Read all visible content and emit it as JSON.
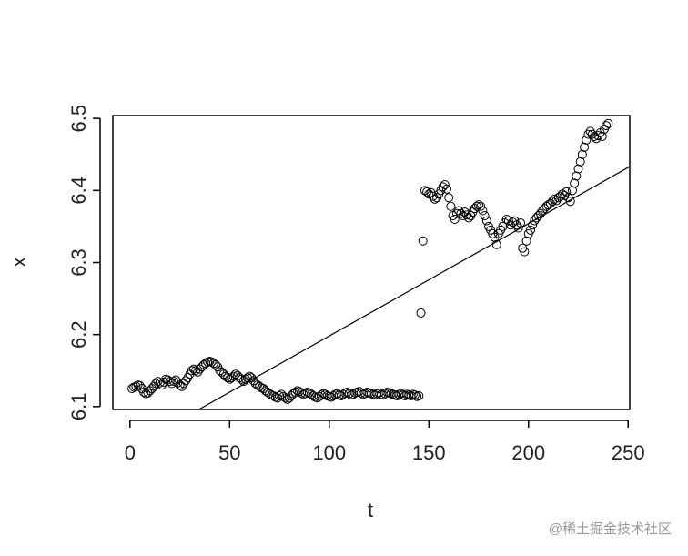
{
  "chart_data": {
    "type": "scatter",
    "xlabel": "t",
    "ylabel": "x",
    "watermark": "@稀土掘金技术社区",
    "xlim": [
      -8.6,
      250.8
    ],
    "ylim": [
      6.096,
      6.504
    ],
    "xticks": [
      0,
      50,
      100,
      150,
      200,
      250
    ],
    "yticks": [
      6.1,
      6.2,
      6.3,
      6.4,
      6.5
    ],
    "color": "#000000",
    "abline": {
      "intercept": 6.042,
      "slope": 0.00156
    },
    "x": [
      1,
      2,
      3,
      4,
      5,
      6,
      7,
      8,
      9,
      10,
      11,
      12,
      13,
      14,
      15,
      16,
      17,
      18,
      19,
      20,
      21,
      22,
      23,
      24,
      25,
      26,
      27,
      28,
      29,
      30,
      31,
      32,
      33,
      34,
      35,
      36,
      37,
      38,
      39,
      40,
      41,
      42,
      43,
      44,
      45,
      46,
      47,
      48,
      49,
      50,
      51,
      52,
      53,
      54,
      55,
      56,
      57,
      58,
      59,
      60,
      61,
      62,
      63,
      64,
      65,
      66,
      67,
      68,
      69,
      70,
      71,
      72,
      73,
      74,
      75,
      76,
      77,
      78,
      79,
      80,
      81,
      82,
      83,
      84,
      85,
      86,
      87,
      88,
      89,
      90,
      91,
      92,
      93,
      94,
      95,
      96,
      97,
      98,
      99,
      100,
      101,
      102,
      103,
      104,
      105,
      106,
      107,
      108,
      109,
      110,
      111,
      112,
      113,
      114,
      115,
      116,
      117,
      118,
      119,
      120,
      121,
      122,
      123,
      124,
      125,
      126,
      127,
      128,
      129,
      130,
      131,
      132,
      133,
      134,
      135,
      136,
      137,
      138,
      139,
      140,
      141,
      142,
      143,
      144,
      145,
      146,
      147,
      148,
      149,
      150,
      151,
      152,
      153,
      154,
      155,
      156,
      157,
      158,
      159,
      160,
      161,
      162,
      163,
      164,
      165,
      166,
      167,
      168,
      169,
      170,
      171,
      172,
      173,
      174,
      175,
      176,
      177,
      178,
      179,
      180,
      181,
      182,
      183,
      184,
      185,
      186,
      187,
      188,
      189,
      190,
      191,
      192,
      193,
      194,
      195,
      196,
      197,
      198,
      199,
      200,
      201,
      202,
      203,
      204,
      205,
      206,
      207,
      208,
      209,
      210,
      211,
      212,
      213,
      214,
      215,
      216,
      217,
      218,
      219,
      220,
      221,
      222,
      223,
      224,
      225,
      226,
      227,
      228,
      229,
      230,
      231,
      232,
      233,
      234,
      235,
      236,
      237,
      238,
      239,
      240
    ],
    "values": [
      6.125,
      6.127,
      6.128,
      6.13,
      6.129,
      6.125,
      6.12,
      6.118,
      6.119,
      6.122,
      6.125,
      6.128,
      6.132,
      6.135,
      6.133,
      6.13,
      6.134,
      6.138,
      6.137,
      6.135,
      6.132,
      6.135,
      6.137,
      6.133,
      6.13,
      6.128,
      6.132,
      6.136,
      6.14,
      6.145,
      6.15,
      6.152,
      6.15,
      6.148,
      6.152,
      6.155,
      6.158,
      6.16,
      6.162,
      6.163,
      6.162,
      6.16,
      6.158,
      6.155,
      6.15,
      6.148,
      6.145,
      6.142,
      6.14,
      6.138,
      6.14,
      6.142,
      6.145,
      6.143,
      6.14,
      6.138,
      6.135,
      6.138,
      6.14,
      6.142,
      6.14,
      6.136,
      6.132,
      6.13,
      6.128,
      6.126,
      6.125,
      6.122,
      6.12,
      6.118,
      6.116,
      6.115,
      6.113,
      6.112,
      6.115,
      6.117,
      6.114,
      6.112,
      6.11,
      6.112,
      6.115,
      6.118,
      6.12,
      6.122,
      6.121,
      6.119,
      6.117,
      6.118,
      6.12,
      6.119,
      6.117,
      6.115,
      6.113,
      6.112,
      6.114,
      6.116,
      6.118,
      6.117,
      6.115,
      6.114,
      6.113,
      6.115,
      6.117,
      6.118,
      6.116,
      6.115,
      6.117,
      6.119,
      6.12,
      6.118,
      6.116,
      6.117,
      6.119,
      6.12,
      6.121,
      6.119,
      6.117,
      6.118,
      6.12,
      6.119,
      6.118,
      6.117,
      6.116,
      6.118,
      6.119,
      6.117,
      6.116,
      6.118,
      6.12,
      6.119,
      6.118,
      6.117,
      6.116,
      6.115,
      6.117,
      6.118,
      6.116,
      6.115,
      6.117,
      6.116,
      6.115,
      6.117,
      6.116,
      6.114,
      6.115,
      6.23,
      6.33,
      6.4,
      6.398,
      6.395,
      6.397,
      6.392,
      6.388,
      6.39,
      6.395,
      6.4,
      6.405,
      6.408,
      6.402,
      6.39,
      6.378,
      6.365,
      6.36,
      6.368,
      6.372,
      6.368,
      6.365,
      6.37,
      6.366,
      6.362,
      6.365,
      6.37,
      6.375,
      6.378,
      6.38,
      6.378,
      6.372,
      6.365,
      6.358,
      6.35,
      6.345,
      6.34,
      6.335,
      6.325,
      6.34,
      6.345,
      6.35,
      6.355,
      6.36,
      6.358,
      6.352,
      6.356,
      6.358,
      6.352,
      6.348,
      6.355,
      6.32,
      6.315,
      6.33,
      6.34,
      6.345,
      6.352,
      6.358,
      6.362,
      6.365,
      6.368,
      6.372,
      6.375,
      6.378,
      6.38,
      6.382,
      6.385,
      6.388,
      6.386,
      6.39,
      6.392,
      6.395,
      6.393,
      6.398,
      6.39,
      6.385,
      6.4,
      6.41,
      6.42,
      6.43,
      6.44,
      6.45,
      6.46,
      6.47,
      6.478,
      6.482,
      6.478,
      6.475,
      6.472,
      6.476,
      6.48,
      6.475,
      6.485,
      6.49,
      6.493
    ]
  }
}
